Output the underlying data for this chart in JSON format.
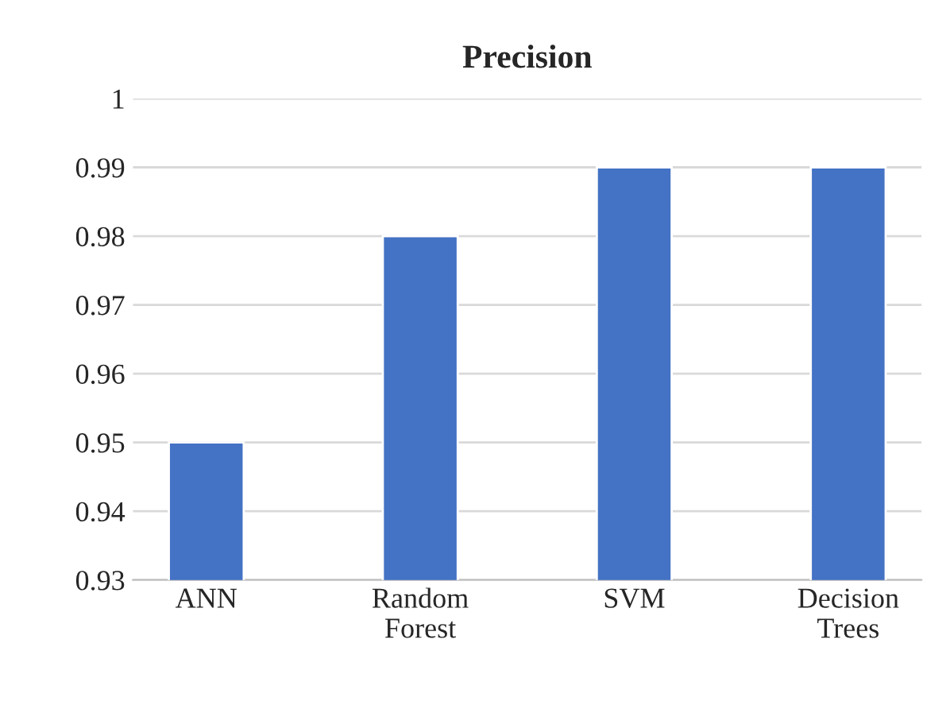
{
  "chart_data": {
    "type": "bar",
    "title": "Precision",
    "categories": [
      "ANN",
      "Random Forest",
      "SVM",
      "Decision Trees"
    ],
    "values": [
      0.95,
      0.98,
      0.99,
      0.99
    ],
    "color": "#4472c4",
    "ylim": [
      0.93,
      1
    ],
    "yticks": [
      0.93,
      0.94,
      0.95,
      0.96,
      0.97,
      0.98,
      0.99,
      1
    ],
    "grid": "y"
  }
}
